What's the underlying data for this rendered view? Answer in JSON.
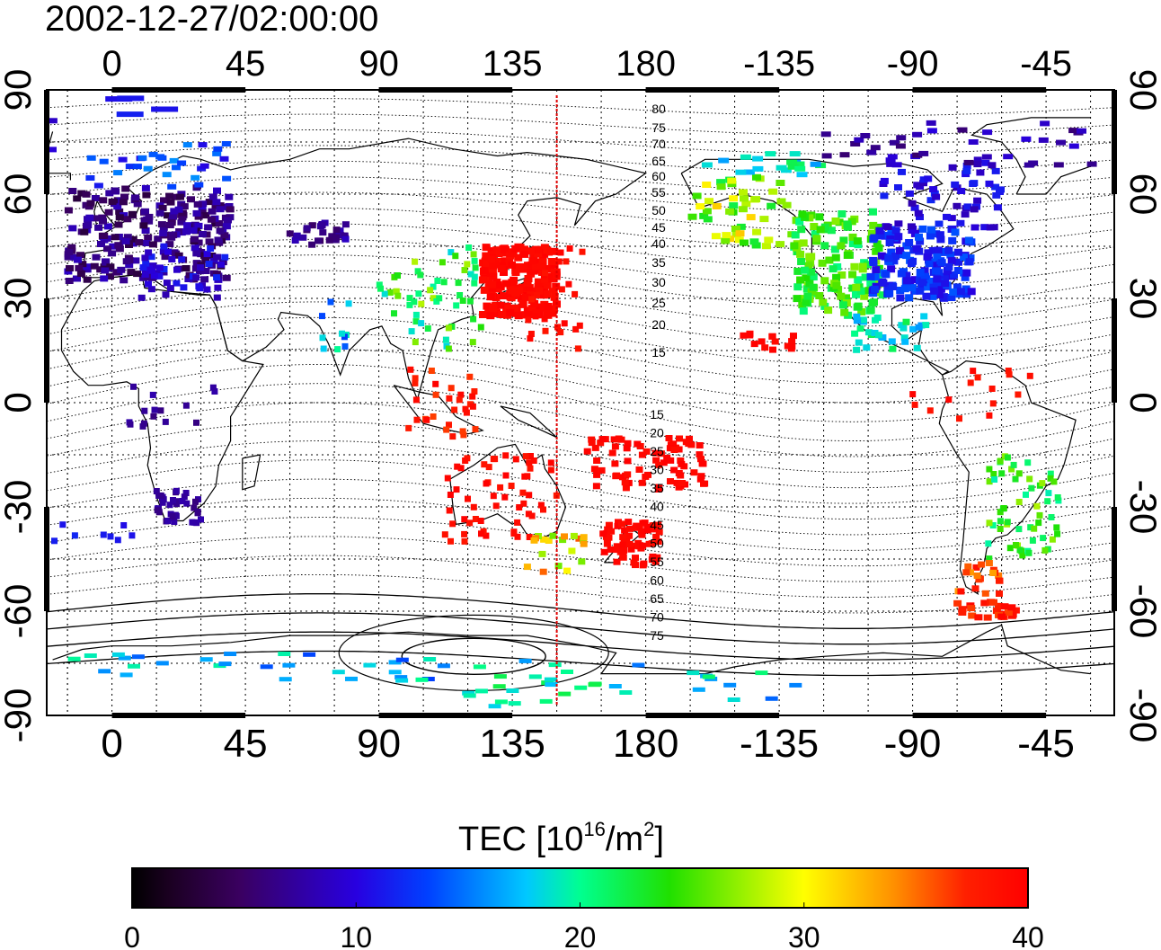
{
  "timestamp": "2002-12-27/02:00:00",
  "map": {
    "lon_ticks": [
      "0",
      "45",
      "90",
      "135",
      "180",
      "-135",
      "-90",
      "-45"
    ],
    "lat_ticks": [
      "90",
      "60",
      "30",
      "0",
      "-30",
      "-60",
      "-90"
    ],
    "local_noon_meridian_lon": 150,
    "contour_labels": [
      "80",
      "75",
      "70",
      "65",
      "60",
      "55",
      "50",
      "45",
      "40",
      "35",
      "30",
      "25",
      "20",
      "15",
      "15",
      "20",
      "25",
      "30",
      "35",
      "40",
      "45",
      "50",
      "55",
      "60",
      "65",
      "70",
      "75"
    ]
  },
  "colorbar": {
    "title_main": "TEC  [10",
    "title_exp": "16",
    "title_unit": "/m",
    "title_unit_exp": "2",
    "title_close": "]",
    "ticks": [
      "0",
      "10",
      "20",
      "30",
      "40"
    ],
    "min": 0,
    "max": 40
  },
  "regions": [
    {
      "name": "europe",
      "tec": 7
    },
    {
      "name": "japan-east-asia",
      "tec": 40
    },
    {
      "name": "north-america-west",
      "tec": 24
    },
    {
      "name": "north-america-east",
      "tec": 11
    },
    {
      "name": "australia",
      "tec": 40
    },
    {
      "name": "south-america",
      "tec": 22
    },
    {
      "name": "southern-africa",
      "tec": 7
    }
  ]
}
